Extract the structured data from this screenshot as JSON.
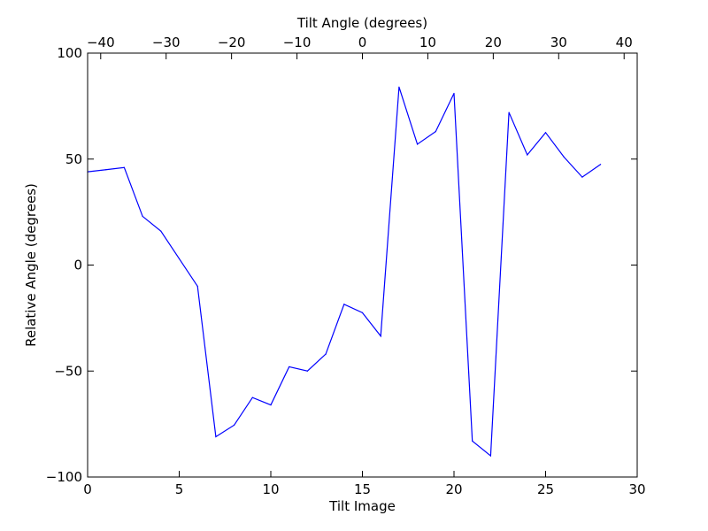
{
  "chart_data": {
    "type": "line",
    "xlabel": "Tilt Image",
    "ylabel": "Relative Angle (degrees)",
    "top_xlabel": "Tilt Angle (degrees)",
    "xlim": [
      0,
      30
    ],
    "ylim": [
      -100,
      100
    ],
    "top_xlim": [
      -42,
      42
    ],
    "grid": false,
    "x_ticks": [
      0,
      5,
      10,
      15,
      20,
      25,
      30
    ],
    "x_tick_labels": [
      "0",
      "5",
      "10",
      "15",
      "20",
      "25",
      "30"
    ],
    "y_ticks": [
      -100,
      -50,
      0,
      50,
      100
    ],
    "y_tick_labels": [
      "−100",
      "−50",
      "0",
      "50",
      "100"
    ],
    "top_x_ticks": [
      -40,
      -30,
      -20,
      -10,
      0,
      10,
      20,
      30,
      40
    ],
    "top_x_tick_labels": [
      "−40",
      "−30",
      "−20",
      "−10",
      "0",
      "10",
      "20",
      "30",
      "40"
    ],
    "series": [
      {
        "color": "#0000ff",
        "x": [
          0,
          1,
          2,
          3,
          4,
          5,
          6,
          7,
          8,
          9,
          10,
          11,
          12,
          13,
          14,
          15,
          16,
          17,
          18,
          19,
          20,
          21,
          22,
          23,
          24,
          25,
          26,
          27,
          28
        ],
        "values": [
          44,
          45,
          46,
          23,
          16,
          3,
          -10,
          -81,
          -75.5,
          -62.5,
          -66,
          -48,
          -50,
          -42,
          -18.5,
          -22.5,
          -33.5,
          84,
          57,
          63,
          81,
          -83,
          -90,
          72,
          52,
          62.5,
          51,
          41.5,
          47.5
        ]
      }
    ]
  }
}
